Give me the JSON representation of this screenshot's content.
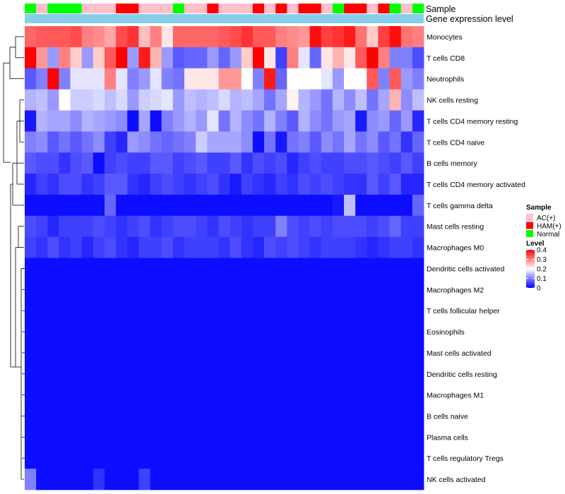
{
  "chart_data": {
    "type": "heatmap",
    "title": "",
    "annotation_labels": {
      "sample": "Sample",
      "gene_expression": "Gene expression level"
    },
    "rows": [
      "Monocytes",
      "T cells CD8",
      "Neutrophils",
      "NK cells resting",
      "T cells CD4 memory resting",
      "T cells CD4 naive",
      "B cells memory",
      "T cells CD4 memory activated",
      "T cells gamma delta",
      "Mast cells resting",
      "Macrophages M0",
      "Dendritic cells activated",
      "Macrophages M2",
      "T cells follicular helper",
      "Eosinophils",
      "Mast cells activated",
      "Dendritic cells resting",
      "Macrophages M1",
      "B cells naive",
      "Plasma cells",
      "T cells regulatory  Tregs",
      "NK cells activated"
    ],
    "sample_groups": [
      "Normal",
      "AC(+)",
      "Normal",
      "Normal",
      "Normal",
      "AC(+)",
      "AC(+)",
      "AC(+)",
      "HAM(+)",
      "HAM(+)",
      "AC(+)",
      "AC(+)",
      "AC(+)",
      "Normal",
      "AC(+)",
      "AC(+)",
      "HAM(+)",
      "AC(+)",
      "AC(+)",
      "AC(+)",
      "HAM(+)",
      "AC(+)",
      "HAM(+)",
      "AC(+)",
      "HAM(+)",
      "HAM(+)",
      "AC(+)",
      "Normal",
      "HAM(+)",
      "HAM(+)",
      "AC(+)",
      "HAM(+)",
      "Normal",
      "AC(+)",
      "Normal"
    ],
    "values": [
      [
        0.32,
        0.33,
        0.33,
        0.33,
        0.34,
        0.3,
        0.29,
        0.27,
        0.34,
        0.36,
        0.25,
        0.3,
        0.22,
        0.32,
        0.32,
        0.32,
        0.32,
        0.33,
        0.34,
        0.36,
        0.33,
        0.33,
        0.3,
        0.29,
        0.28,
        0.39,
        0.35,
        0.36,
        0.38,
        0.31,
        0.24,
        0.35,
        0.39,
        0.31,
        0.3
      ],
      [
        0.4,
        0.28,
        0.12,
        0.3,
        0.24,
        0.12,
        0.24,
        0.33,
        0.42,
        0.12,
        0.38,
        0.26,
        0.12,
        0.07,
        0.08,
        0.08,
        0.12,
        0.08,
        0.12,
        0.24,
        0.42,
        0.22,
        0.05,
        0.3,
        0.18,
        0.08,
        0.22,
        0.26,
        0.22,
        0.33,
        0.43,
        0.3,
        0.1,
        0.1,
        0.06
      ],
      [
        0.07,
        0.1,
        0.43,
        0.1,
        0.18,
        0.18,
        0.18,
        0.3,
        0.18,
        0.1,
        0.12,
        0.18,
        0.1,
        0.09,
        0.22,
        0.22,
        0.22,
        0.28,
        0.28,
        0.2,
        0.1,
        0.38,
        0.08,
        0.2,
        0.2,
        0.2,
        0.18,
        0.12,
        0.2,
        0.2,
        0.33,
        0.1,
        0.33,
        0.12,
        0.1
      ],
      [
        0.14,
        0.15,
        0.12,
        0.2,
        0.16,
        0.16,
        0.17,
        0.15,
        0.17,
        0.12,
        0.16,
        0.17,
        0.18,
        0.12,
        0.15,
        0.14,
        0.15,
        0.17,
        0.14,
        0.15,
        0.13,
        0.09,
        0.13,
        0.21,
        0.14,
        0.12,
        0.09,
        0.14,
        0.11,
        0.15,
        0.09,
        0.13,
        0.26,
        0.11,
        0.15
      ],
      [
        0.02,
        0.14,
        0.13,
        0.13,
        0.11,
        0.14,
        0.13,
        0.12,
        0.11,
        0.01,
        0.13,
        0.01,
        0.1,
        0.12,
        0.14,
        0.12,
        0.18,
        0.09,
        0.14,
        0.11,
        0.09,
        0.14,
        0.1,
        0.07,
        0.14,
        0.11,
        0.09,
        0.12,
        0.13,
        0.02,
        0.11,
        0.12,
        0.08,
        0.12,
        0.03
      ],
      [
        0.1,
        0.11,
        0.07,
        0.09,
        0.07,
        0.09,
        0.11,
        0.05,
        0.03,
        0.12,
        0.11,
        0.09,
        0.08,
        0.09,
        0.1,
        0.16,
        0.13,
        0.13,
        0.13,
        0.11,
        0.01,
        0.09,
        0.02,
        0.09,
        0.1,
        0.07,
        0.11,
        0.09,
        0.13,
        0.09,
        0.11,
        0.07,
        0.09,
        0.04,
        0.08
      ],
      [
        0.07,
        0.06,
        0.06,
        0.04,
        0.06,
        0.07,
        0.01,
        0.05,
        0.06,
        0.05,
        0.05,
        0.07,
        0.07,
        0.05,
        0.06,
        0.07,
        0.05,
        0.05,
        0.07,
        0.04,
        0.06,
        0.05,
        0.06,
        0.03,
        0.05,
        0.06,
        0.05,
        0.05,
        0.06,
        0.06,
        0.07,
        0.06,
        0.05,
        0.07,
        0.05
      ],
      [
        0.03,
        0.05,
        0.04,
        0.06,
        0.06,
        0.04,
        0.05,
        0.07,
        0.07,
        0.04,
        0.03,
        0.05,
        0.06,
        0.05,
        0.04,
        0.05,
        0.06,
        0.04,
        0.02,
        0.05,
        0.04,
        0.03,
        0.05,
        0.04,
        0.06,
        0.05,
        0.06,
        0.05,
        0.04,
        0.04,
        0.07,
        0.05,
        0.07,
        0.03,
        0.03
      ],
      [
        0.01,
        0.01,
        0.01,
        0.01,
        0.01,
        0.01,
        0.01,
        0.08,
        0.01,
        0.01,
        0.01,
        0.01,
        0.01,
        0.01,
        0.01,
        0.01,
        0.01,
        0.01,
        0.01,
        0.01,
        0.01,
        0.01,
        0.01,
        0.01,
        0.01,
        0.01,
        0.01,
        0.02,
        0.15,
        0.01,
        0.01,
        0.01,
        0.01,
        0.01,
        0.08
      ],
      [
        0.06,
        0.05,
        0.03,
        0.05,
        0.05,
        0.05,
        0.06,
        0.05,
        0.04,
        0.05,
        0.06,
        0.04,
        0.05,
        0.06,
        0.06,
        0.05,
        0.04,
        0.06,
        0.05,
        0.04,
        0.05,
        0.05,
        0.1,
        0.06,
        0.05,
        0.06,
        0.05,
        0.06,
        0.06,
        0.06,
        0.05,
        0.06,
        0.08,
        0.05,
        0.05
      ],
      [
        0.05,
        0.04,
        0.06,
        0.04,
        0.05,
        0.03,
        0.05,
        0.06,
        0.04,
        0.03,
        0.05,
        0.05,
        0.06,
        0.04,
        0.05,
        0.05,
        0.05,
        0.04,
        0.06,
        0.04,
        0.03,
        0.06,
        0.05,
        0.06,
        0.05,
        0.04,
        0.05,
        0.05,
        0.05,
        0.04,
        0.03,
        0.04,
        0.05,
        0.05,
        0.04
      ],
      [
        0.01,
        0.01,
        0.01,
        0.01,
        0.01,
        0.01,
        0.01,
        0.01,
        0.01,
        0.01,
        0.01,
        0.01,
        0.01,
        0.01,
        0.01,
        0.01,
        0.01,
        0.01,
        0.01,
        0.01,
        0.01,
        0.01,
        0.01,
        0.01,
        0.01,
        0.01,
        0.01,
        0.01,
        0.01,
        0.01,
        0.01,
        0.01,
        0.01,
        0.01,
        0.01
      ],
      [
        0.01,
        0.01,
        0.01,
        0.01,
        0.01,
        0.01,
        0.01,
        0.01,
        0.01,
        0.01,
        0.01,
        0.01,
        0.01,
        0.01,
        0.01,
        0.01,
        0.01,
        0.01,
        0.01,
        0.01,
        0.01,
        0.01,
        0.01,
        0.01,
        0.01,
        0.01,
        0.01,
        0.01,
        0.01,
        0.01,
        0.01,
        0.01,
        0.01,
        0.01,
        0.01
      ],
      [
        0.01,
        0.01,
        0.01,
        0.01,
        0.01,
        0.01,
        0.01,
        0.01,
        0.01,
        0.01,
        0.01,
        0.01,
        0.01,
        0.01,
        0.01,
        0.01,
        0.01,
        0.01,
        0.01,
        0.01,
        0.01,
        0.01,
        0.01,
        0.01,
        0.01,
        0.01,
        0.01,
        0.01,
        0.01,
        0.01,
        0.01,
        0.01,
        0.01,
        0.01,
        0.01
      ],
      [
        0.01,
        0.01,
        0.01,
        0.01,
        0.01,
        0.01,
        0.01,
        0.01,
        0.01,
        0.01,
        0.01,
        0.01,
        0.01,
        0.01,
        0.01,
        0.01,
        0.01,
        0.01,
        0.01,
        0.01,
        0.01,
        0.01,
        0.01,
        0.01,
        0.01,
        0.01,
        0.01,
        0.01,
        0.01,
        0.01,
        0.01,
        0.01,
        0.01,
        0.01,
        0.01
      ],
      [
        0.01,
        0.01,
        0.01,
        0.01,
        0.01,
        0.01,
        0.01,
        0.01,
        0.01,
        0.01,
        0.01,
        0.01,
        0.01,
        0.01,
        0.01,
        0.01,
        0.01,
        0.01,
        0.01,
        0.01,
        0.01,
        0.01,
        0.01,
        0.01,
        0.01,
        0.01,
        0.01,
        0.01,
        0.01,
        0.01,
        0.01,
        0.01,
        0.01,
        0.01,
        0.01
      ],
      [
        0.01,
        0.01,
        0.01,
        0.01,
        0.01,
        0.01,
        0.01,
        0.01,
        0.01,
        0.01,
        0.01,
        0.01,
        0.01,
        0.01,
        0.01,
        0.01,
        0.01,
        0.01,
        0.01,
        0.01,
        0.01,
        0.01,
        0.01,
        0.01,
        0.01,
        0.01,
        0.01,
        0.01,
        0.01,
        0.01,
        0.01,
        0.01,
        0.01,
        0.01,
        0.01
      ],
      [
        0.01,
        0.01,
        0.01,
        0.01,
        0.01,
        0.01,
        0.01,
        0.01,
        0.01,
        0.01,
        0.01,
        0.01,
        0.01,
        0.01,
        0.01,
        0.01,
        0.01,
        0.01,
        0.01,
        0.01,
        0.01,
        0.01,
        0.01,
        0.01,
        0.01,
        0.01,
        0.01,
        0.01,
        0.01,
        0.01,
        0.01,
        0.01,
        0.01,
        0.01,
        0.01
      ],
      [
        0.01,
        0.01,
        0.01,
        0.01,
        0.01,
        0.01,
        0.01,
        0.01,
        0.01,
        0.01,
        0.01,
        0.01,
        0.01,
        0.01,
        0.01,
        0.01,
        0.01,
        0.01,
        0.01,
        0.01,
        0.01,
        0.01,
        0.01,
        0.01,
        0.01,
        0.01,
        0.01,
        0.01,
        0.01,
        0.01,
        0.01,
        0.01,
        0.01,
        0.01,
        0.01
      ],
      [
        0.01,
        0.01,
        0.01,
        0.01,
        0.01,
        0.01,
        0.01,
        0.01,
        0.01,
        0.01,
        0.01,
        0.01,
        0.01,
        0.01,
        0.01,
        0.01,
        0.01,
        0.01,
        0.01,
        0.01,
        0.01,
        0.01,
        0.01,
        0.01,
        0.01,
        0.01,
        0.01,
        0.01,
        0.01,
        0.01,
        0.01,
        0.01,
        0.01,
        0.01,
        0.01
      ],
      [
        0.01,
        0.01,
        0.01,
        0.01,
        0.01,
        0.01,
        0.01,
        0.01,
        0.01,
        0.01,
        0.01,
        0.01,
        0.01,
        0.01,
        0.01,
        0.01,
        0.01,
        0.01,
        0.01,
        0.01,
        0.01,
        0.01,
        0.01,
        0.01,
        0.01,
        0.01,
        0.01,
        0.01,
        0.01,
        0.01,
        0.01,
        0.01,
        0.01,
        0.01,
        0.01
      ],
      [
        0.1,
        0.01,
        0.01,
        0.01,
        0.01,
        0.01,
        0.04,
        0.01,
        0.01,
        0.01,
        0.05,
        0.01,
        0.01,
        0.01,
        0.01,
        0.01,
        0.01,
        0.01,
        0.01,
        0.01,
        0.01,
        0.01,
        0.01,
        0.01,
        0.01,
        0.01,
        0.01,
        0.01,
        0.01,
        0.01,
        0.01,
        0.01,
        0.01,
        0.01,
        0.01
      ]
    ],
    "color_scale": {
      "min": 0,
      "mid": 0.2,
      "max": 0.4,
      "low": "#0000ff",
      "mid_color": "#ffffff",
      "high": "#ff0000"
    },
    "gene_expression_color": "#87ceeb",
    "legend": {
      "sample_title": "Sample",
      "sample_items": [
        {
          "label": "AC(+)",
          "color": "#ffc0cb"
        },
        {
          "label": "HAM(+)",
          "color": "#ff0000"
        },
        {
          "label": "Normal",
          "color": "#00ff00"
        }
      ],
      "level_title": "Level",
      "level_ticks": [
        "0.4",
        "0.3",
        "0.2",
        "0.1",
        "0"
      ],
      "level_tick_values": [
        0.4,
        0.3,
        0.2,
        0.1,
        0
      ]
    }
  }
}
